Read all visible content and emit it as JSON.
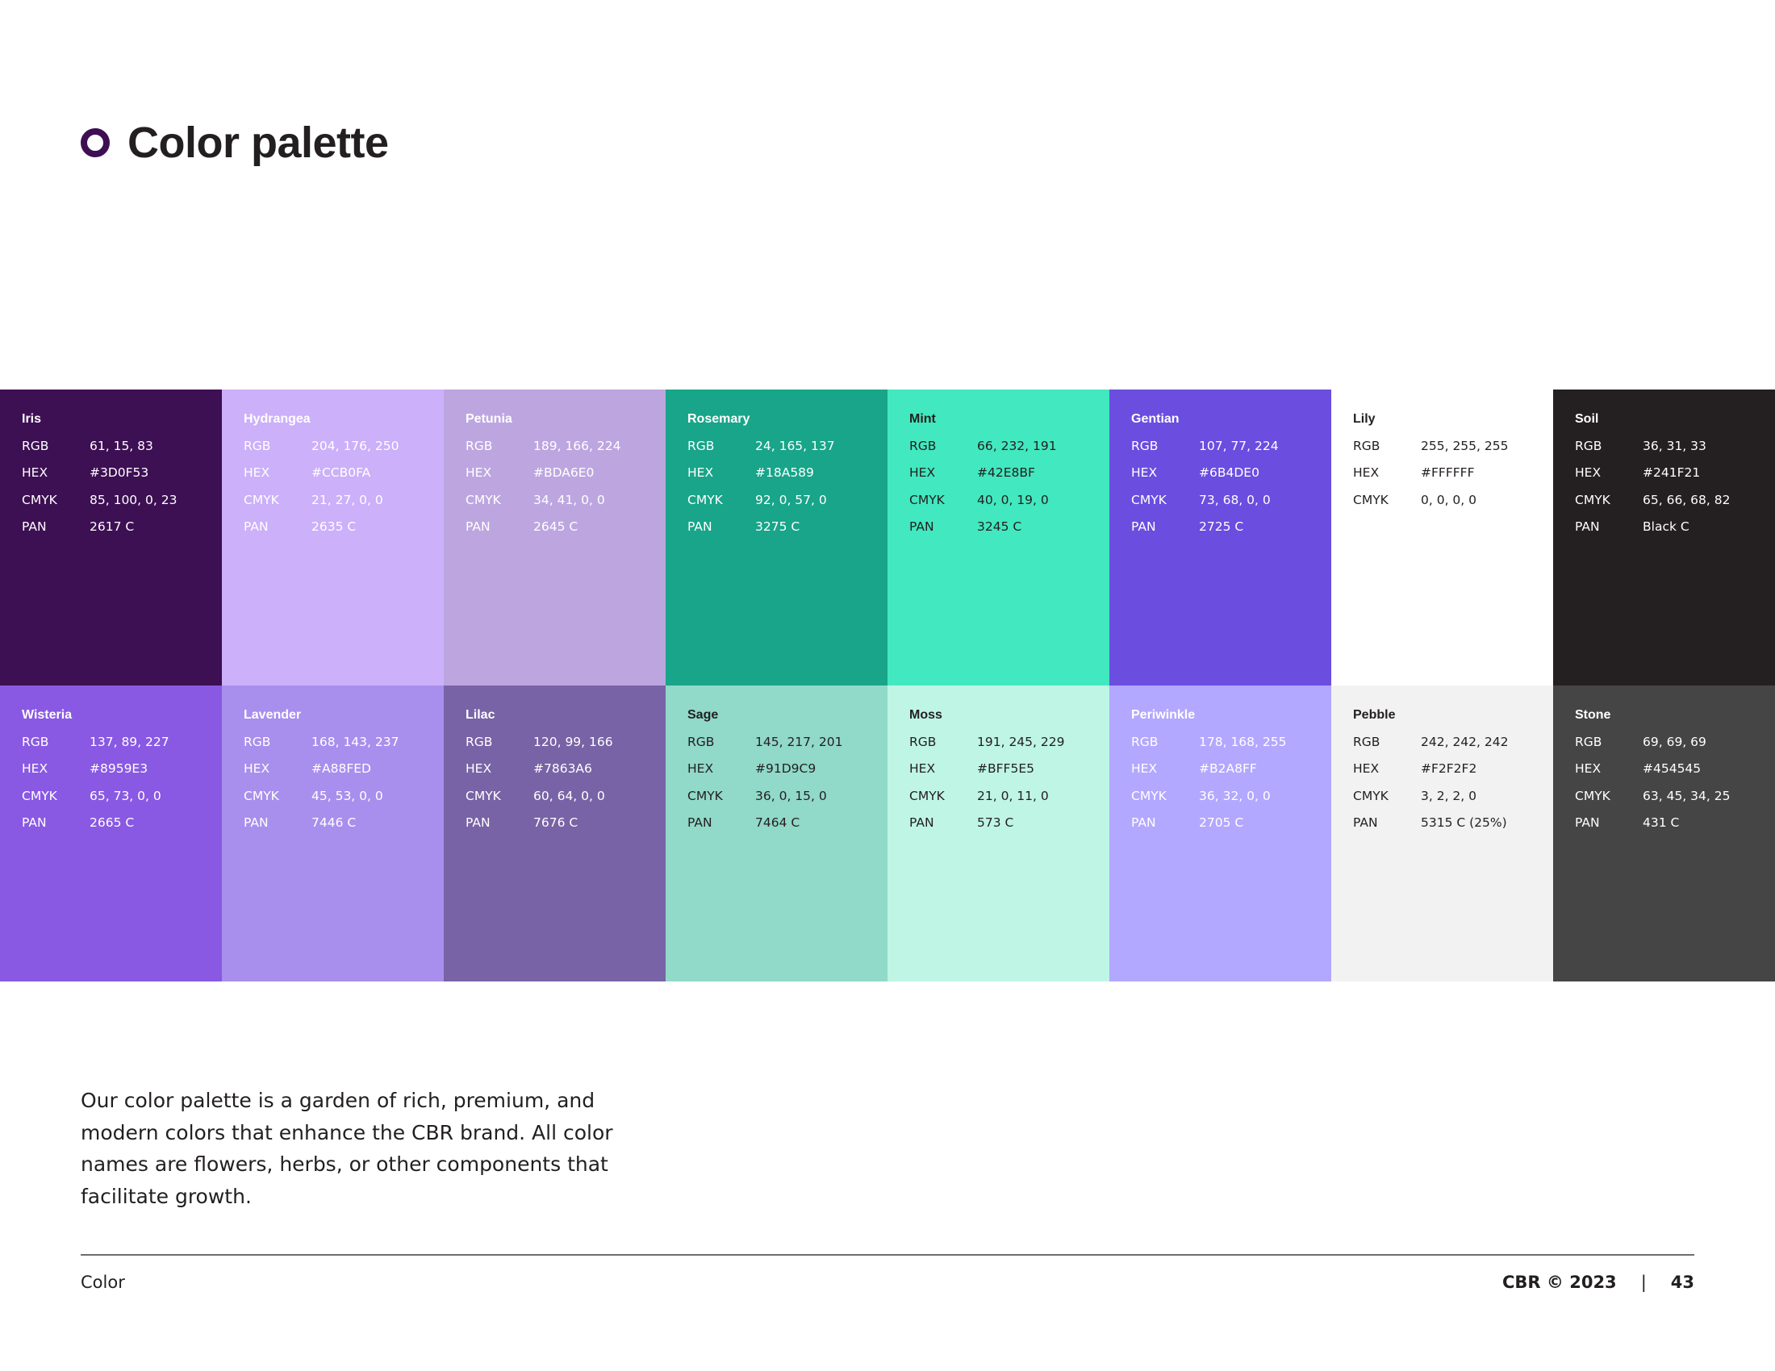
{
  "page": {
    "title": "Color palette",
    "description": "Our color palette is a garden of rich, premium, and modern colors that enhance the CBR brand. All color names are flowers, herbs, or other components that facilitate growth.",
    "footer_section": "Color",
    "footer_copyright": "CBR © 2023",
    "footer_divider": "|",
    "page_number": "43",
    "accent_color": "#3D0F53"
  },
  "labels": {
    "rgb": "RGB",
    "hex": "HEX",
    "cmyk": "CMYK",
    "pan": "PAN"
  },
  "swatches": [
    {
      "name": "Iris",
      "rgb": "61, 15, 83",
      "hex": "#3D0F53",
      "cmyk": "85, 100, 0, 23",
      "pan": "2617 C",
      "fill": "#3D0F53",
      "text_color": "#FFFFFF"
    },
    {
      "name": "Hydrangea",
      "rgb": "204, 176, 250",
      "hex": "#CCB0FA",
      "cmyk": "21, 27, 0, 0",
      "pan": "2635 C",
      "fill": "#CCB0FA",
      "text_color": "#FFFFFF"
    },
    {
      "name": "Petunia",
      "rgb": "189, 166, 224",
      "hex": "#BDA6E0",
      "cmyk": "34, 41, 0, 0",
      "pan": "2645 C",
      "fill": "#BDA6E0",
      "text_color": "#FFFFFF"
    },
    {
      "name": "Rosemary",
      "rgb": "24, 165, 137",
      "hex": "#18A589",
      "cmyk": "92, 0, 57, 0",
      "pan": "3275 C",
      "fill": "#18A589",
      "text_color": "#FFFFFF"
    },
    {
      "name": "Mint",
      "rgb": "66, 232, 191",
      "hex": "#42E8BF",
      "cmyk": "40, 0, 19, 0",
      "pan": "3245 C",
      "fill": "#42E8BF",
      "text_color": "#231F20"
    },
    {
      "name": "Gentian",
      "rgb": "107, 77, 224",
      "hex": "#6B4DE0",
      "cmyk": "73, 68, 0, 0",
      "pan": "2725 C",
      "fill": "#6B4DE0",
      "text_color": "#FFFFFF"
    },
    {
      "name": "Lily",
      "rgb": "255, 255, 255",
      "hex": "#FFFFFF",
      "cmyk": "0, 0, 0, 0",
      "pan": null,
      "fill": "#FFFFFF",
      "text_color": "#231F20"
    },
    {
      "name": "Soil",
      "rgb": "36, 31, 33",
      "hex": "#241F21",
      "cmyk": "65, 66, 68, 82",
      "pan": "Black C",
      "fill": "#241F21",
      "text_color": "#FFFFFF"
    },
    {
      "name": "Wisteria",
      "rgb": "137, 89, 227",
      "hex": "#8959E3",
      "cmyk": "65, 73, 0, 0",
      "pan": "2665 C",
      "fill": "#8959E3",
      "text_color": "#FFFFFF"
    },
    {
      "name": "Lavender",
      "rgb": "168, 143, 237",
      "hex": "#A88FED",
      "cmyk": "45, 53, 0, 0",
      "pan": "7446 C",
      "fill": "#A88FED",
      "text_color": "#FFFFFF"
    },
    {
      "name": "Lilac",
      "rgb": "120, 99, 166",
      "hex": "#7863A6",
      "cmyk": "60, 64, 0, 0",
      "pan": "7676 C",
      "fill": "#7863A6",
      "text_color": "#FFFFFF"
    },
    {
      "name": "Sage",
      "rgb": "145, 217, 201",
      "hex": "#91D9C9",
      "cmyk": "36, 0, 15, 0",
      "pan": "7464 C",
      "fill": "#91D9C9",
      "text_color": "#231F20"
    },
    {
      "name": "Moss",
      "rgb": "191, 245, 229",
      "hex": "#BFF5E5",
      "cmyk": "21, 0, 11, 0",
      "pan": "573 C",
      "fill": "#BFF5E5",
      "text_color": "#231F20"
    },
    {
      "name": "Periwinkle",
      "rgb": "178, 168, 255",
      "hex": "#B2A8FF",
      "cmyk": "36, 32, 0, 0",
      "pan": "2705 C",
      "fill": "#B2A8FF",
      "text_color": "#FFFFFF"
    },
    {
      "name": "Pebble",
      "rgb": "242, 242, 242",
      "hex": "#F2F2F2",
      "cmyk": "3, 2, 2, 0",
      "pan": "5315 C (25%)",
      "fill": "#F2F2F2",
      "text_color": "#231F20"
    },
    {
      "name": "Stone",
      "rgb": "69, 69, 69",
      "hex": "#454545",
      "cmyk": "63, 45, 34, 25",
      "pan": "431 C",
      "fill": "#454545",
      "text_color": "#FFFFFF"
    }
  ]
}
